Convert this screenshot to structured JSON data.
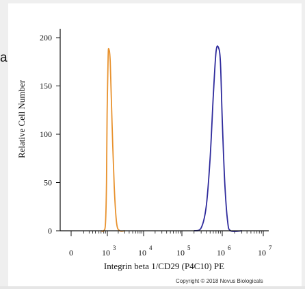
{
  "panel_label": "a",
  "copyright": "Copyright © 2018 Novus Biologicals",
  "colors": {
    "control": "#e8922e",
    "stained": "#2e2a9c",
    "axis": "#111111"
  },
  "chart_data": {
    "type": "area",
    "xlabel": "Integrin beta 1/CD29 (P4C10) PE",
    "ylabel": "Relative Cell Number",
    "x_scale": "biexponential/log",
    "y_ticks": [
      0,
      50,
      100,
      150,
      200
    ],
    "ylim": [
      0,
      210
    ],
    "x_ticks": [
      {
        "value": 0,
        "label": "0",
        "exp": ""
      },
      {
        "value": 1000,
        "label": "10",
        "exp": "3"
      },
      {
        "value": 10000,
        "label": "10",
        "exp": "4"
      },
      {
        "value": 100000,
        "label": "10",
        "exp": "5"
      },
      {
        "value": 1000000,
        "label": "10",
        "exp": "6"
      },
      {
        "value": 10000000,
        "label": "10",
        "exp": "7"
      }
    ],
    "grid": false,
    "series": [
      {
        "color": "#e8922e",
        "peak_x": 1100,
        "peak_y": 188,
        "points": [
          [
            300,
            0
          ],
          [
            500,
            0
          ],
          [
            700,
            8
          ],
          [
            850,
            50
          ],
          [
            950,
            120
          ],
          [
            1050,
            180
          ],
          [
            1100,
            188
          ],
          [
            1200,
            175
          ],
          [
            1350,
            110
          ],
          [
            1550,
            45
          ],
          [
            1800,
            8
          ],
          [
            2200,
            0
          ],
          [
            3000,
            0
          ]
        ]
      },
      {
        "color": "#2e2a9c",
        "peak_x": 800000,
        "peak_y": 190,
        "points": [
          [
            200000,
            0
          ],
          [
            300000,
            3
          ],
          [
            400000,
            25
          ],
          [
            500000,
            75
          ],
          [
            600000,
            140
          ],
          [
            700000,
            185
          ],
          [
            800000,
            190
          ],
          [
            900000,
            175
          ],
          [
            1000000,
            115
          ],
          [
            1150000,
            50
          ],
          [
            1350000,
            10
          ],
          [
            1600000,
            0
          ],
          [
            3000000,
            0
          ]
        ]
      }
    ]
  }
}
